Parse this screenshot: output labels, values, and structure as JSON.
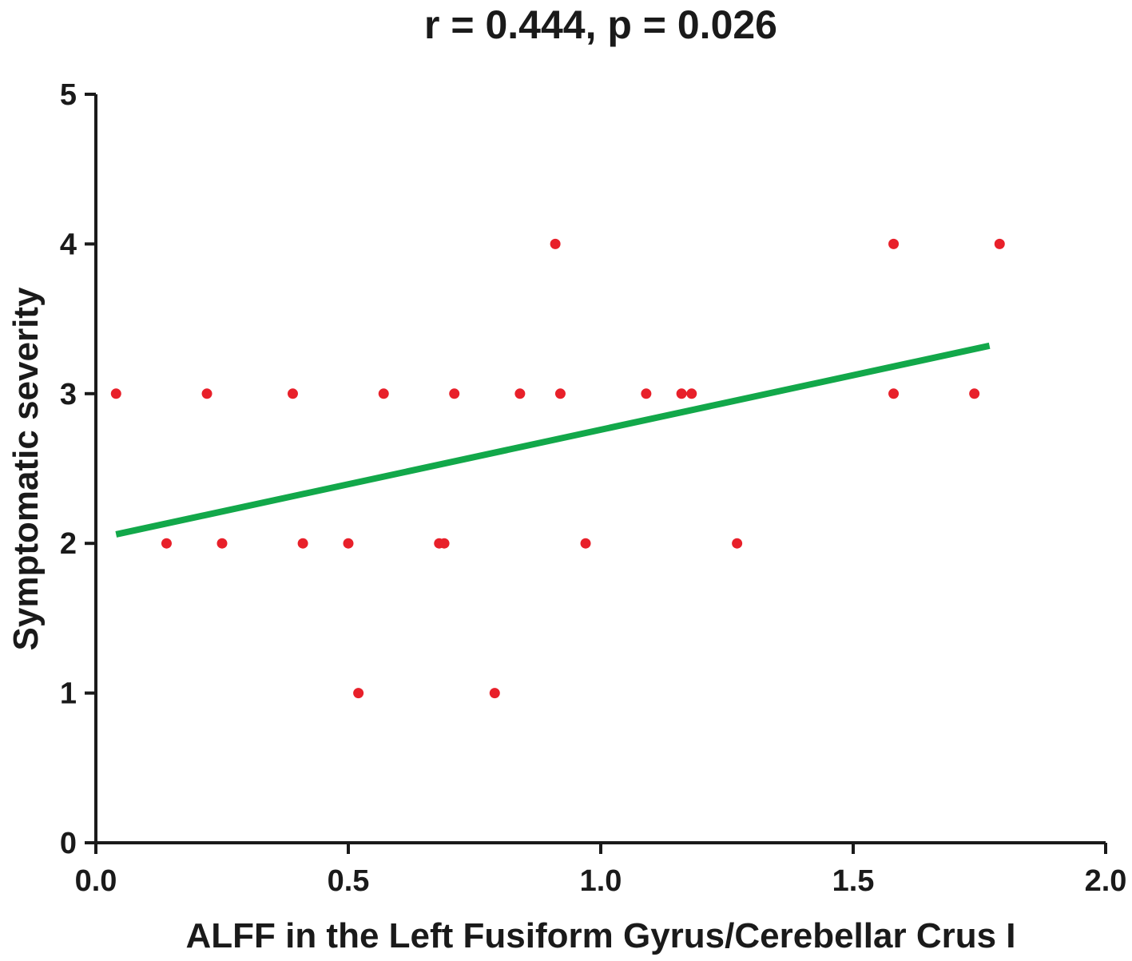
{
  "chart_data": {
    "type": "scatter",
    "title": "r = 0.444, p = 0.026",
    "xlabel": "ALFF in the Left Fusiform Gyrus/Cerebellar Crus I",
    "ylabel": "Symptomatic severity",
    "xlim": [
      0.0,
      2.0
    ],
    "ylim": [
      0,
      5
    ],
    "x_ticks": [
      "0.0",
      "0.5",
      "1.0",
      "1.5",
      "2.0"
    ],
    "y_ticks": [
      "0",
      "1",
      "2",
      "3",
      "4",
      "5"
    ],
    "grid": false,
    "colors": {
      "points": "#e8202a",
      "fit_line": "#12a84a",
      "axes": "#1a1a1a"
    },
    "series": [
      {
        "type": "scatter",
        "points": [
          [
            0.04,
            3
          ],
          [
            0.22,
            3
          ],
          [
            0.39,
            3
          ],
          [
            0.57,
            3
          ],
          [
            0.71,
            3
          ],
          [
            0.84,
            3
          ],
          [
            0.92,
            3
          ],
          [
            1.09,
            3
          ],
          [
            1.16,
            3
          ],
          [
            1.18,
            3
          ],
          [
            1.58,
            3
          ],
          [
            1.74,
            3
          ],
          [
            0.14,
            2
          ],
          [
            0.25,
            2
          ],
          [
            0.41,
            2
          ],
          [
            0.5,
            2
          ],
          [
            0.68,
            2
          ],
          [
            0.69,
            2
          ],
          [
            0.97,
            2
          ],
          [
            1.27,
            2
          ],
          [
            0.91,
            4
          ],
          [
            1.58,
            4
          ],
          [
            1.79,
            4
          ],
          [
            0.52,
            1
          ],
          [
            0.79,
            1
          ]
        ]
      },
      {
        "type": "line",
        "points": [
          [
            0.04,
            2.06
          ],
          [
            1.77,
            3.32
          ]
        ]
      }
    ]
  }
}
